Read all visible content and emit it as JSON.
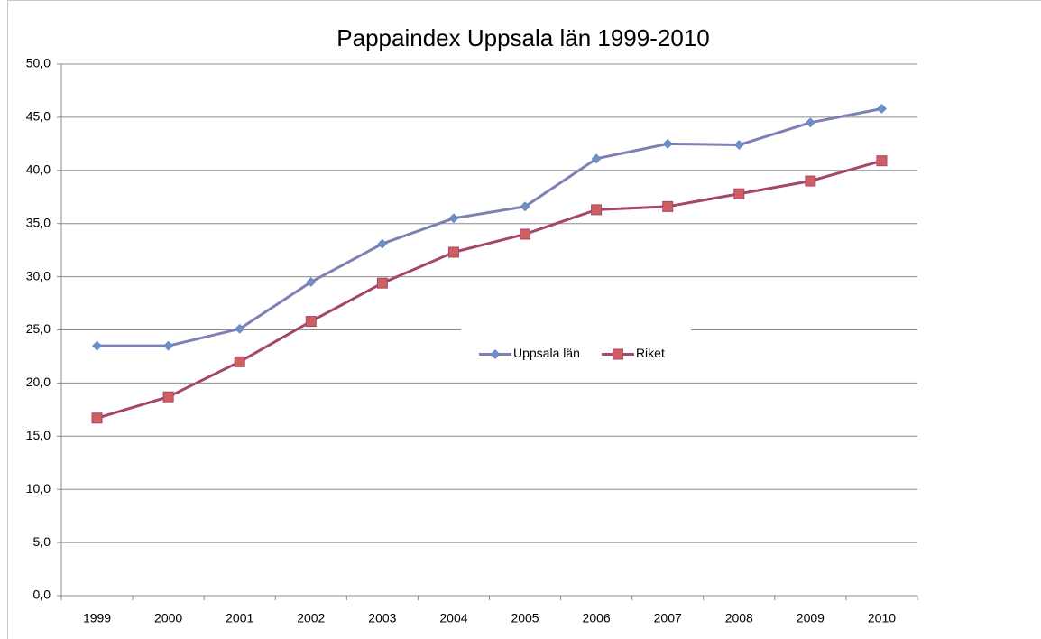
{
  "chart_data": {
    "type": "line",
    "title": "Pappaindex Uppsala län 1999-2010",
    "categories": [
      "1999",
      "2000",
      "2001",
      "2002",
      "2003",
      "2004",
      "2005",
      "2006",
      "2007",
      "2008",
      "2009",
      "2010"
    ],
    "series": [
      {
        "name": "Uppsala län",
        "color": "#7d80b3",
        "marker_color": "#6f8fc8",
        "marker": "diamond",
        "values": [
          23.5,
          23.5,
          25.1,
          29.5,
          33.1,
          35.5,
          36.6,
          41.1,
          42.5,
          42.4,
          44.5,
          45.8
        ]
      },
      {
        "name": "Riket",
        "color": "#a4466f",
        "marker_color": "#d0605f",
        "marker": "square",
        "values": [
          16.7,
          18.7,
          22.0,
          25.8,
          29.4,
          32.3,
          34.0,
          36.3,
          36.6,
          37.8,
          39.0,
          40.9
        ]
      }
    ],
    "ylim": [
      0,
      50
    ],
    "yticks": [
      {
        "value": 0,
        "label": "0,0"
      },
      {
        "value": 5,
        "label": "5,0"
      },
      {
        "value": 10,
        "label": "10,0"
      },
      {
        "value": 15,
        "label": "15,0"
      },
      {
        "value": 20,
        "label": "20,0"
      },
      {
        "value": 25,
        "label": "25,0"
      },
      {
        "value": 30,
        "label": "30,0"
      },
      {
        "value": 35,
        "label": "35,0"
      },
      {
        "value": 40,
        "label": "40,0"
      },
      {
        "value": 45,
        "label": "45,0"
      },
      {
        "value": 50,
        "label": "50,0"
      }
    ],
    "grid": true,
    "legend": "center"
  }
}
